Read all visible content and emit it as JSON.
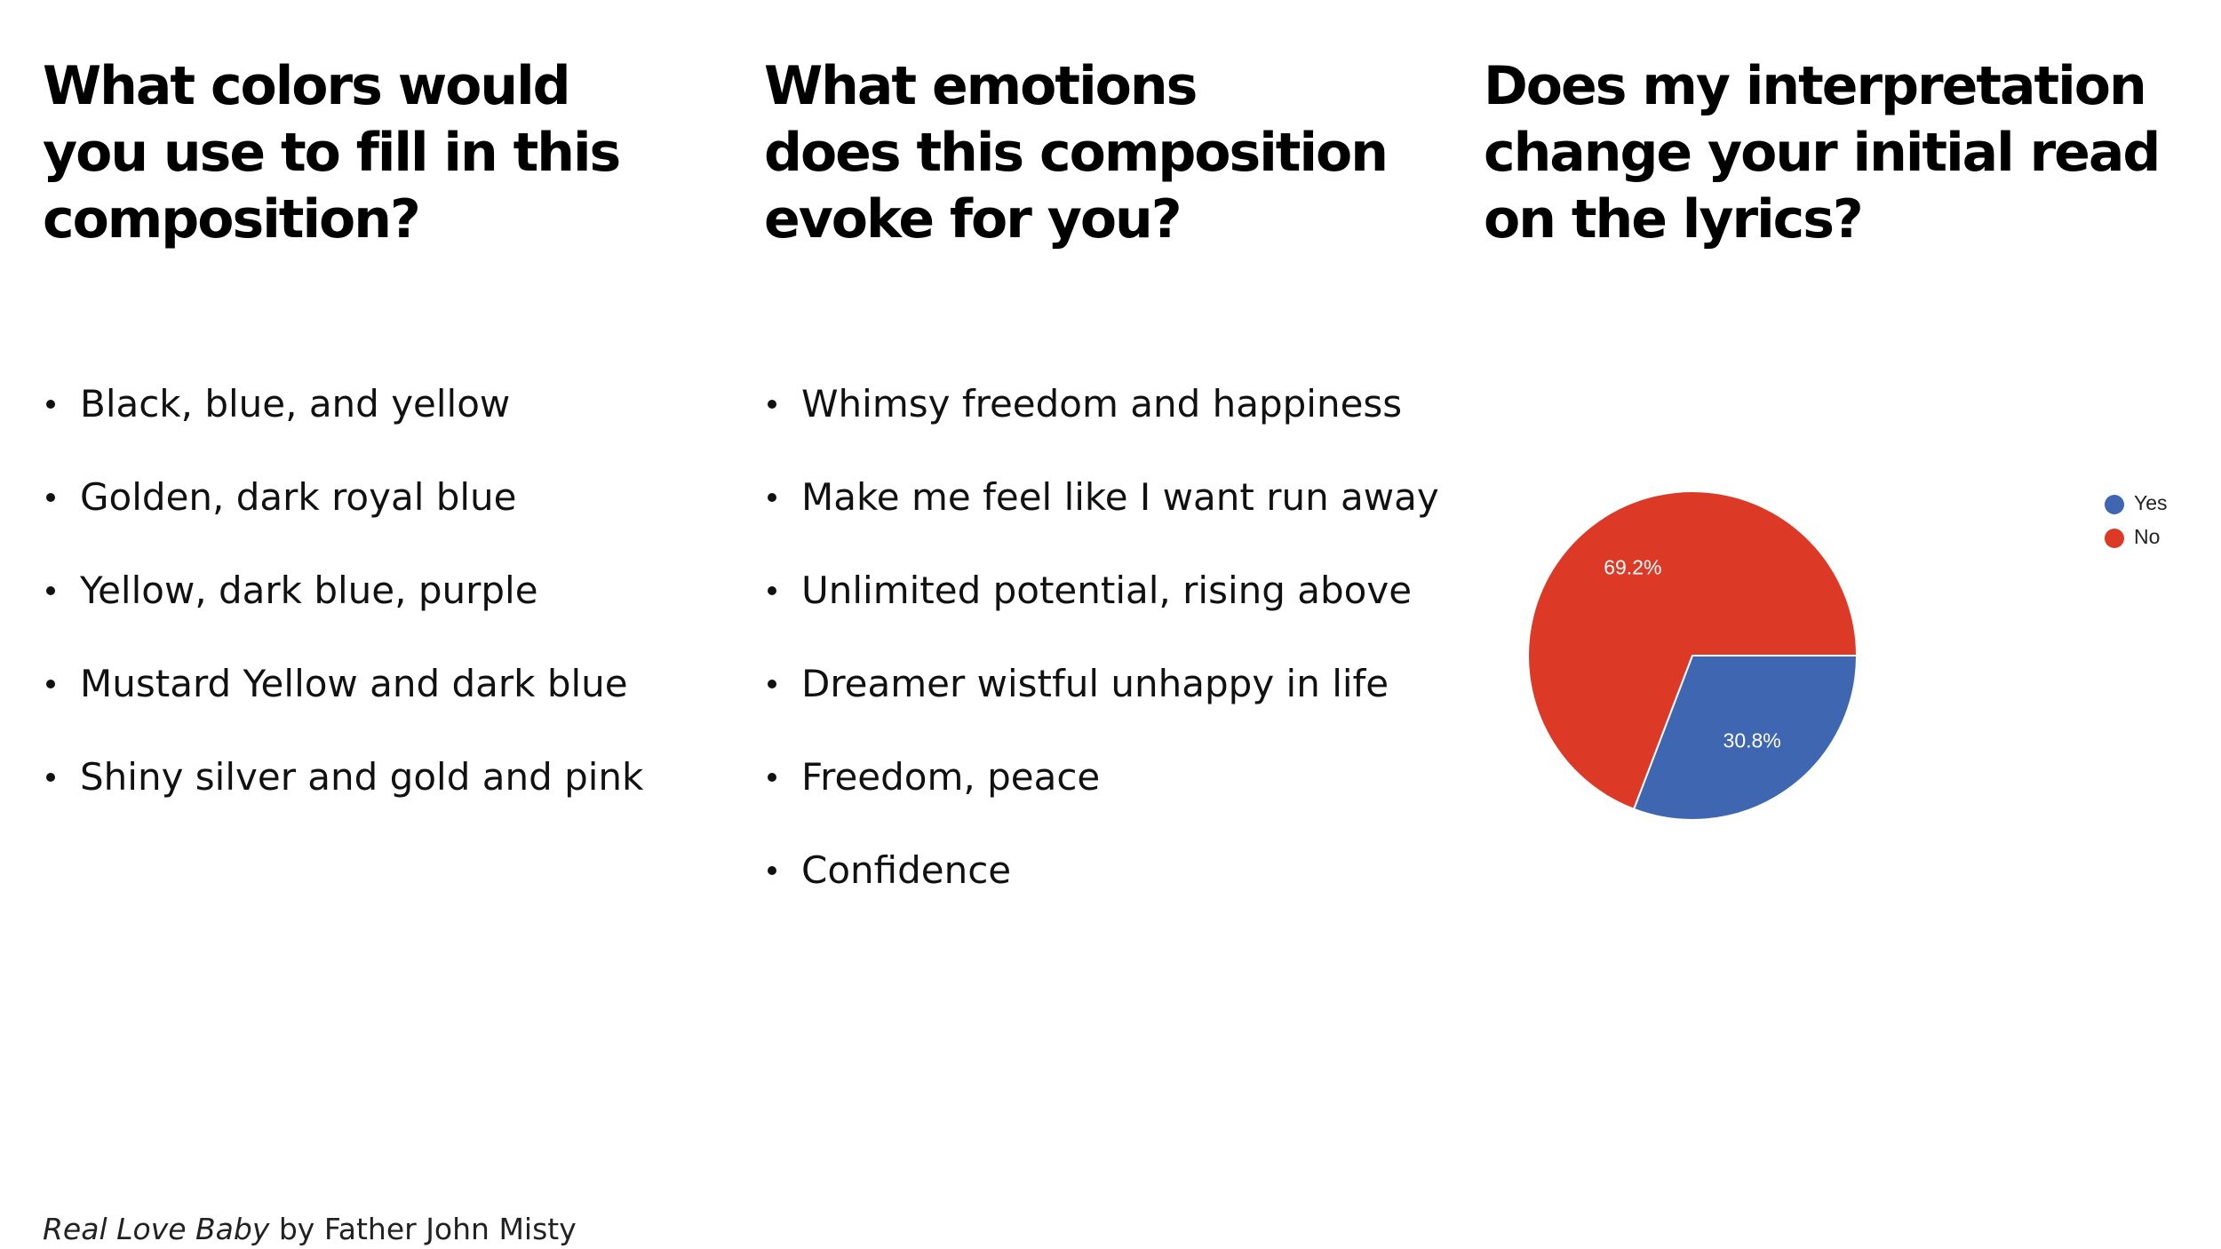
{
  "columns": [
    {
      "heading": "What colors would\nyou use to fill in this\ncomposition?",
      "items": [
        "Black, blue, and yellow",
        "Golden, dark royal blue",
        "Yellow, dark blue, purple",
        "Mustard Yellow and dark blue",
        "Shiny silver and gold and pink"
      ]
    },
    {
      "heading": "What emotions\ndoes this composition\nevoke for you?",
      "items": [
        "Whimsy freedom and happiness",
        "Make me feel like I want run away",
        "Unlimited potential, rising above",
        "Dreamer wistful unhappy in life",
        "Freedom, peace",
        "Confidence"
      ]
    },
    {
      "heading": "Does my interpretation\nchange your initial read\non the lyrics?"
    }
  ],
  "chart_data": {
    "type": "pie",
    "categories": [
      "Yes",
      "No"
    ],
    "values": [
      30.8,
      69.2
    ],
    "labels": [
      "30.8%",
      "69.2%"
    ],
    "colors": [
      "#3F66B0",
      "#DC3A27"
    ],
    "legend": [
      "Yes",
      "No"
    ],
    "legend_position": "top-right",
    "title": ""
  },
  "footer": {
    "song": "Real Love Baby",
    "by_text": " by Father John Misty"
  }
}
